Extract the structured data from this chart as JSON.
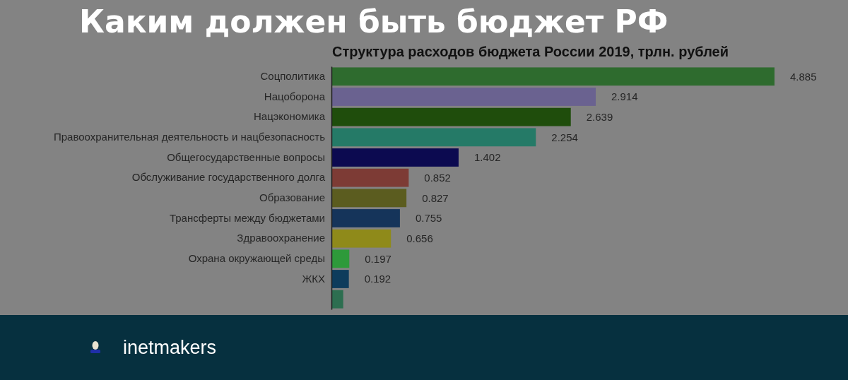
{
  "chart_data": {
    "type": "bar",
    "orientation": "horizontal",
    "tick_labels": "y",
    "title": "Каким должен быть бюджет РФ",
    "subtitle": "Структура расходов бюджета России 2019, трлн. рублей",
    "categories": [
      "Соцполитика",
      "Нацоборона",
      "Нацэкономика",
      "Правоохранительная деятельность и нацбезопасность",
      "Общегосударственные вопросы",
      "Обслуживание государственного долга",
      "Образование",
      "Трансферты между бюджетами",
      "Здравоохранение",
      "Охрана окружающей среды",
      "ЖКХ",
      null
    ],
    "values": [
      4.885,
      2.914,
      2.639,
      2.254,
      1.402,
      0.852,
      0.827,
      0.755,
      0.656,
      0.197,
      0.192,
      0.13
    ],
    "colors": [
      "#2e6b2e",
      "#6a6290",
      "#1f4d0c",
      "#257a67",
      "#0c0a50",
      "#7d3b35",
      "#5b5c1f",
      "#15345a",
      "#8f8a1a",
      "#2e9a3a",
      "#0e3c5c",
      "#2d6e50"
    ],
    "value_labels": [
      "4.885",
      "2.914",
      "2.639",
      "2.254",
      "1.402",
      "0.852",
      "0.827",
      "0.755",
      "0.656",
      "0.197",
      "0.192",
      null
    ],
    "annotations": [
      "inetmakers"
    ]
  }
}
